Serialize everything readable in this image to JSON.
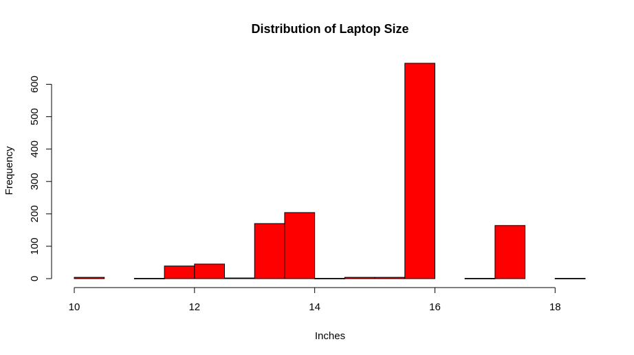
{
  "chart_data": {
    "type": "bar",
    "title": "Distribution of Laptop Size",
    "xlabel": "Inches",
    "ylabel": "Frequency",
    "bar_color": "#ff0000",
    "bar_edge_color": "#000000",
    "xlim": [
      10,
      18.5
    ],
    "ylim": [
      0,
      667
    ],
    "x_ticks": [
      10,
      12,
      14,
      16,
      18
    ],
    "y_ticks": [
      0,
      100,
      200,
      300,
      400,
      500,
      600
    ],
    "bin_width": 0.5,
    "bins": [
      {
        "x0": 10.0,
        "x1": 10.5,
        "value": 4
      },
      {
        "x0": 10.5,
        "x1": 11.0,
        "value": 0
      },
      {
        "x0": 11.0,
        "x1": 11.5,
        "value": 1
      },
      {
        "x0": 11.5,
        "x1": 12.0,
        "value": 39
      },
      {
        "x0": 12.0,
        "x1": 12.5,
        "value": 45
      },
      {
        "x0": 12.5,
        "x1": 13.0,
        "value": 2
      },
      {
        "x0": 13.0,
        "x1": 13.5,
        "value": 170
      },
      {
        "x0": 13.5,
        "x1": 14.0,
        "value": 204
      },
      {
        "x0": 14.0,
        "x1": 14.5,
        "value": 1
      },
      {
        "x0": 14.5,
        "x1": 15.0,
        "value": 4
      },
      {
        "x0": 15.0,
        "x1": 15.5,
        "value": 4
      },
      {
        "x0": 15.5,
        "x1": 16.0,
        "value": 665
      },
      {
        "x0": 16.0,
        "x1": 16.5,
        "value": 0
      },
      {
        "x0": 16.5,
        "x1": 17.0,
        "value": 1
      },
      {
        "x0": 17.0,
        "x1": 17.5,
        "value": 164
      },
      {
        "x0": 17.5,
        "x1": 18.0,
        "value": 0
      },
      {
        "x0": 18.0,
        "x1": 18.5,
        "value": 1
      }
    ]
  }
}
